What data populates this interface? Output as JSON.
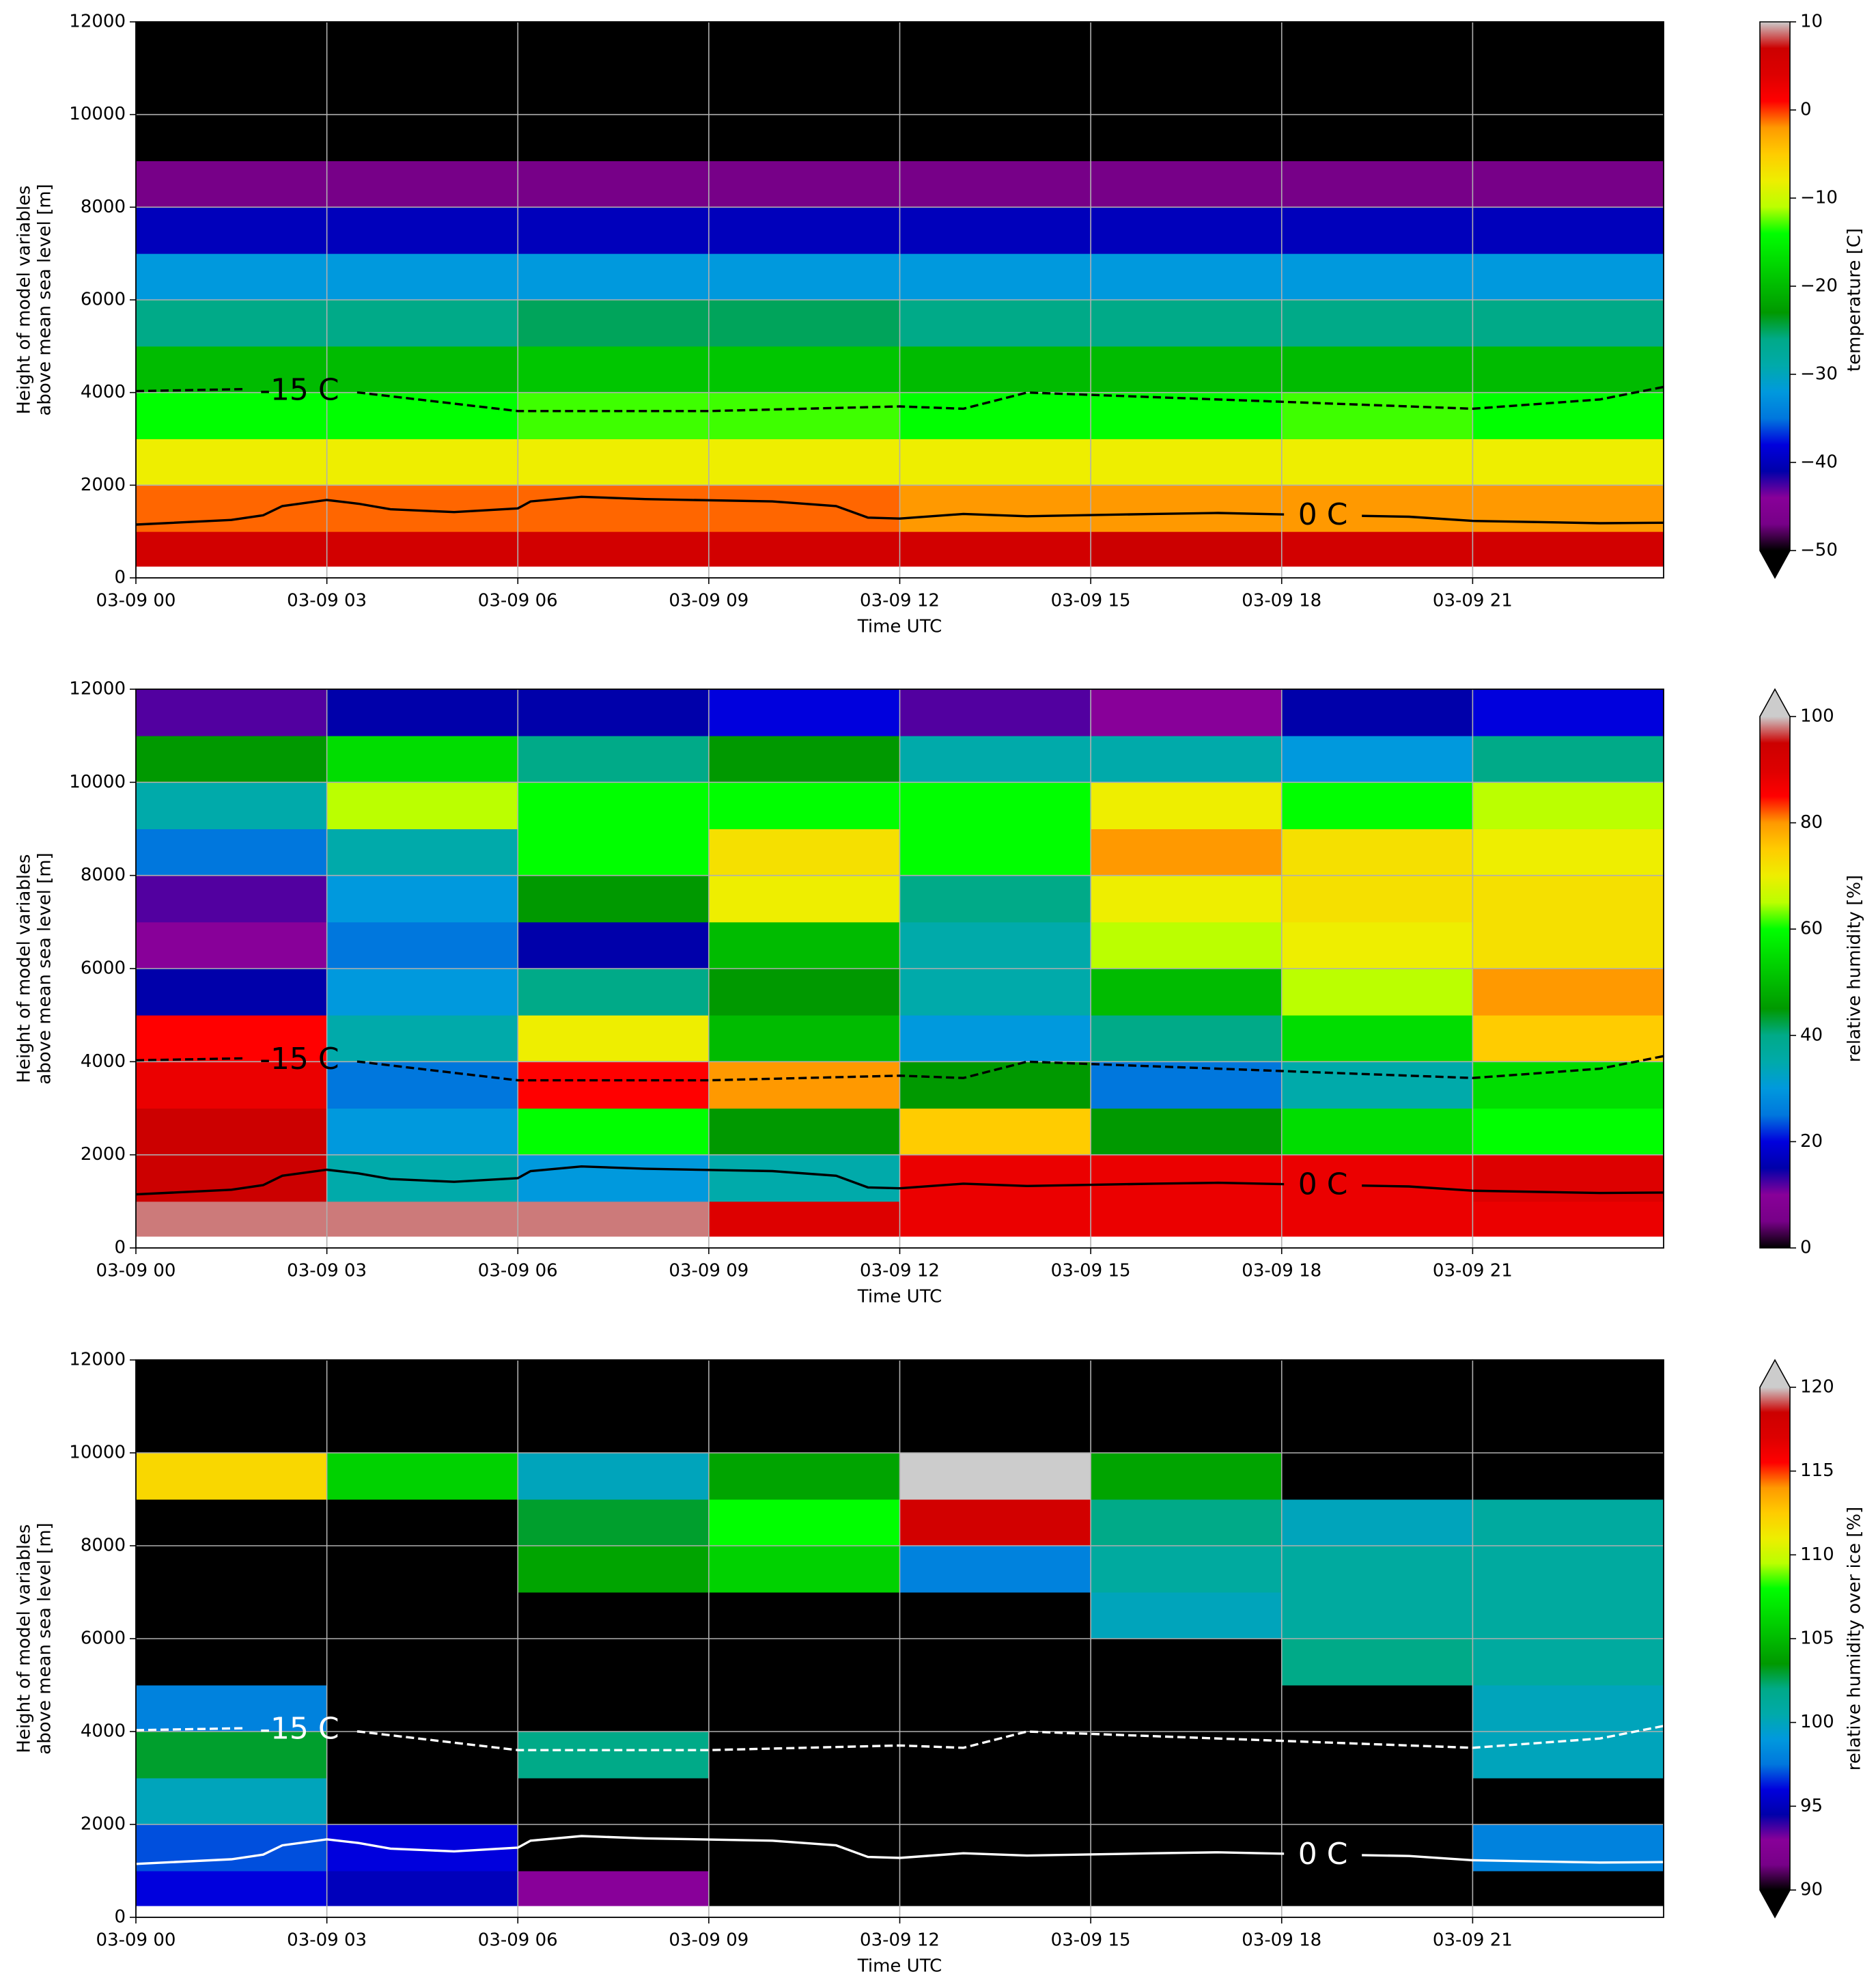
{
  "chart_data": [
    {
      "type": "heatmap",
      "xlabel": "Time UTC",
      "ylabel": [
        "Height of model variables",
        "above mean sea level [m]"
      ],
      "xlim": [
        0,
        24
      ],
      "ylim": [
        0,
        12000
      ],
      "xticks": [
        {
          "value": 0,
          "label": "03-09 00"
        },
        {
          "value": 3,
          "label": "03-09 03"
        },
        {
          "value": 6,
          "label": "03-09 06"
        },
        {
          "value": 9,
          "label": "03-09 09"
        },
        {
          "value": 12,
          "label": "03-09 12"
        },
        {
          "value": 15,
          "label": "03-09 15"
        },
        {
          "value": 18,
          "label": "03-09 18"
        },
        {
          "value": 21,
          "label": "03-09 21"
        }
      ],
      "yticks": [
        0,
        2000,
        4000,
        6000,
        8000,
        10000,
        12000
      ],
      "grid": true,
      "colormap": "nipy_spectral",
      "x_edges": [
        0,
        3,
        6,
        9,
        12,
        15,
        18,
        21,
        24
      ],
      "y_edges": [
        250,
        1000,
        2000,
        3000,
        4000,
        5000,
        6000,
        7000,
        8000,
        9000,
        10000,
        11000,
        12000
      ],
      "z": [
        [
          6,
          6,
          6,
          6,
          6,
          7,
          6,
          6
        ],
        [
          -1,
          -1,
          -1,
          -1,
          -2,
          -2,
          -2,
          -2
        ],
        [
          -8,
          -8,
          -8,
          -8,
          -8,
          -8,
          -8,
          -8
        ],
        [
          -14,
          -14,
          -13,
          -13,
          -14,
          -14,
          -13,
          -14
        ],
        [
          -20,
          -20,
          -19,
          -19,
          -20,
          -20,
          -20,
          -20
        ],
        [
          -26,
          -26,
          -25,
          -25,
          -26,
          -26,
          -26,
          -26
        ],
        [
          -32,
          -32,
          -32,
          -32,
          -32,
          -32,
          -32,
          -32
        ],
        [
          -40,
          -40,
          -40,
          -40,
          -40,
          -40,
          -40,
          -40
        ],
        [
          -47,
          -47,
          -47,
          -47,
          -47,
          -47,
          -47,
          -47
        ],
        [
          -55,
          -55,
          -55,
          -55,
          -55,
          -55,
          -55,
          -55
        ],
        [
          -55,
          -55,
          -55,
          -55,
          -55,
          -55,
          -55,
          -55
        ],
        [
          -55,
          -55,
          -55,
          -55,
          -55,
          -55,
          -55,
          -55
        ]
      ],
      "colorbar": {
        "label": "temperature [C]",
        "clim": [
          -50,
          10
        ],
        "extend": "min",
        "ticks": [
          {
            "value": -50,
            "label": "−50"
          },
          {
            "value": -40,
            "label": "−40"
          },
          {
            "value": -30,
            "label": "−30"
          },
          {
            "value": -20,
            "label": "−20"
          },
          {
            "value": -10,
            "label": "−10"
          },
          0,
          10
        ]
      },
      "contours": [
        {
          "label": "-15 C",
          "style": "dashed",
          "color": "#000000",
          "x": [
            0,
            2,
            3.5,
            6,
            9,
            12,
            13,
            14,
            18,
            21,
            23,
            24
          ],
          "y": [
            4030,
            4080,
            4000,
            3600,
            3600,
            3700,
            3650,
            4000,
            3800,
            3650,
            3850,
            4120
          ]
        },
        {
          "label": "0 C",
          "style": "solid",
          "color": "#000000",
          "x": [
            0,
            1.5,
            2,
            2.3,
            3,
            3.5,
            4,
            5,
            6,
            6.2,
            7,
            8,
            10,
            11,
            11.5,
            12,
            13,
            14,
            16,
            17,
            18,
            20,
            21,
            23,
            24
          ],
          "y": [
            1150,
            1250,
            1350,
            1550,
            1680,
            1600,
            1480,
            1420,
            1500,
            1650,
            1750,
            1700,
            1650,
            1550,
            1300,
            1280,
            1380,
            1330,
            1380,
            1400,
            1370,
            1320,
            1230,
            1180,
            1190
          ]
        }
      ]
    },
    {
      "type": "heatmap",
      "xlabel": "Time UTC",
      "ylabel": [
        "Height of model variables",
        "above mean sea level [m]"
      ],
      "xlim": [
        0,
        24
      ],
      "ylim": [
        0,
        12000
      ],
      "xticks": [
        {
          "value": 0,
          "label": "03-09 00"
        },
        {
          "value": 3,
          "label": "03-09 03"
        },
        {
          "value": 6,
          "label": "03-09 06"
        },
        {
          "value": 9,
          "label": "03-09 09"
        },
        {
          "value": 12,
          "label": "03-09 12"
        },
        {
          "value": 15,
          "label": "03-09 15"
        },
        {
          "value": 18,
          "label": "03-09 18"
        },
        {
          "value": 21,
          "label": "03-09 21"
        }
      ],
      "yticks": [
        0,
        2000,
        4000,
        6000,
        8000,
        10000,
        12000
      ],
      "grid": true,
      "colormap": "nipy_spectral",
      "x_edges": [
        0,
        3,
        6,
        9,
        12,
        15,
        18,
        21,
        24
      ],
      "y_edges": [
        250,
        1000,
        2000,
        3000,
        4000,
        5000,
        6000,
        7000,
        8000,
        9000,
        10000,
        11000,
        12000
      ],
      "z": [
        [
          98,
          98,
          98,
          90,
          88,
          88,
          88,
          88
        ],
        [
          95,
          35,
          30,
          35,
          88,
          88,
          88,
          90
        ],
        [
          95,
          30,
          60,
          45,
          75,
          45,
          55,
          60
        ],
        [
          88,
          25,
          85,
          80,
          45,
          25,
          35,
          55
        ],
        [
          85,
          35,
          70,
          50,
          30,
          40,
          55,
          75
        ],
        [
          15,
          30,
          40,
          45,
          35,
          50,
          65,
          80
        ],
        [
          10,
          25,
          15,
          50,
          35,
          65,
          70,
          72
        ],
        [
          12,
          30,
          45,
          70,
          40,
          70,
          72,
          72
        ],
        [
          25,
          35,
          60,
          72,
          60,
          80,
          72,
          70
        ],
        [
          35,
          65,
          60,
          60,
          60,
          70,
          60,
          65
        ],
        [
          45,
          55,
          40,
          45,
          35,
          35,
          30,
          40
        ],
        [
          12,
          15,
          15,
          20,
          12,
          10,
          15,
          20
        ]
      ],
      "colorbar": {
        "label": "relative humidity [%]",
        "clim": [
          0,
          100
        ],
        "extend": "max",
        "ticks": [
          0,
          20,
          40,
          60,
          80,
          100
        ]
      },
      "contours": [
        {
          "label": "-15 C",
          "style": "dashed",
          "color": "#000000",
          "x": [
            0,
            2,
            3.5,
            6,
            9,
            12,
            13,
            14,
            18,
            21,
            23,
            24
          ],
          "y": [
            4030,
            4080,
            4000,
            3600,
            3600,
            3700,
            3650,
            4000,
            3800,
            3650,
            3850,
            4120
          ]
        },
        {
          "label": "0 C",
          "style": "solid",
          "color": "#000000",
          "x": [
            0,
            1.5,
            2,
            2.3,
            3,
            3.5,
            4,
            5,
            6,
            6.2,
            7,
            8,
            10,
            11,
            11.5,
            12,
            13,
            14,
            16,
            17,
            18,
            20,
            21,
            23,
            24
          ],
          "y": [
            1150,
            1250,
            1350,
            1550,
            1680,
            1600,
            1480,
            1420,
            1500,
            1650,
            1750,
            1700,
            1650,
            1550,
            1300,
            1280,
            1380,
            1330,
            1380,
            1400,
            1370,
            1320,
            1230,
            1180,
            1190
          ]
        }
      ]
    },
    {
      "type": "heatmap",
      "xlabel": "Time UTC",
      "ylabel": [
        "Height of model variables",
        "above mean sea level [m]"
      ],
      "xlim": [
        0,
        24
      ],
      "ylim": [
        0,
        12000
      ],
      "xticks": [
        {
          "value": 0,
          "label": "03-09 00"
        },
        {
          "value": 3,
          "label": "03-09 03"
        },
        {
          "value": 6,
          "label": "03-09 06"
        },
        {
          "value": 9,
          "label": "03-09 09"
        },
        {
          "value": 12,
          "label": "03-09 12"
        },
        {
          "value": 15,
          "label": "03-09 15"
        },
        {
          "value": 18,
          "label": "03-09 18"
        },
        {
          "value": 21,
          "label": "03-09 21"
        }
      ],
      "yticks": [
        0,
        2000,
        4000,
        6000,
        8000,
        10000,
        12000
      ],
      "grid": true,
      "colormap": "nipy_spectral",
      "x_edges": [
        0,
        3,
        6,
        9,
        12,
        15,
        18,
        21,
        24
      ],
      "y_edges": [
        250,
        1000,
        2000,
        3000,
        4000,
        5000,
        6000,
        7000,
        8000,
        9000,
        10000,
        11000,
        12000
      ],
      "z": [
        [
          96,
          95,
          93,
          80,
          80,
          80,
          80,
          80
        ],
        [
          97,
          96,
          80,
          80,
          80,
          80,
          80,
          98
        ],
        [
          100,
          80,
          80,
          80,
          80,
          80,
          80,
          80
        ],
        [
          103,
          80,
          102,
          80,
          80,
          80,
          80,
          100
        ],
        [
          98,
          80,
          80,
          80,
          80,
          80,
          80,
          100
        ],
        [
          80,
          80,
          80,
          80,
          80,
          80,
          102,
          101
        ],
        [
          80,
          80,
          80,
          80,
          80,
          100,
          101,
          101
        ],
        [
          80,
          80,
          104,
          106,
          98,
          101,
          101,
          101
        ],
        [
          80,
          80,
          103,
          108,
          118,
          102,
          100,
          101
        ],
        [
          112,
          106,
          100,
          104,
          122,
          104,
          80,
          80
        ],
        [
          80,
          80,
          80,
          80,
          80,
          80,
          80,
          80
        ],
        [
          80,
          80,
          80,
          80,
          80,
          80,
          80,
          80
        ]
      ],
      "colorbar": {
        "label": "relative humidity over ice [%]",
        "clim": [
          90,
          120
        ],
        "extend": "both",
        "ticks": [
          90,
          95,
          100,
          105,
          110,
          115,
          120
        ]
      },
      "contours": [
        {
          "label": "-15 C",
          "style": "dashed",
          "color": "#ffffff",
          "x": [
            0,
            2,
            3.5,
            6,
            9,
            12,
            13,
            14,
            18,
            21,
            23,
            24
          ],
          "y": [
            4030,
            4080,
            4000,
            3600,
            3600,
            3700,
            3650,
            4000,
            3800,
            3650,
            3850,
            4120
          ]
        },
        {
          "label": "0 C",
          "style": "solid",
          "color": "#ffffff",
          "x": [
            0,
            1.5,
            2,
            2.3,
            3,
            3.5,
            4,
            5,
            6,
            6.2,
            7,
            8,
            10,
            11,
            11.5,
            12,
            13,
            14,
            16,
            17,
            18,
            20,
            21,
            23,
            24
          ],
          "y": [
            1150,
            1250,
            1350,
            1550,
            1680,
            1600,
            1480,
            1420,
            1500,
            1650,
            1750,
            1700,
            1650,
            1550,
            1300,
            1280,
            1380,
            1330,
            1380,
            1400,
            1370,
            1320,
            1230,
            1180,
            1190
          ]
        }
      ]
    }
  ]
}
